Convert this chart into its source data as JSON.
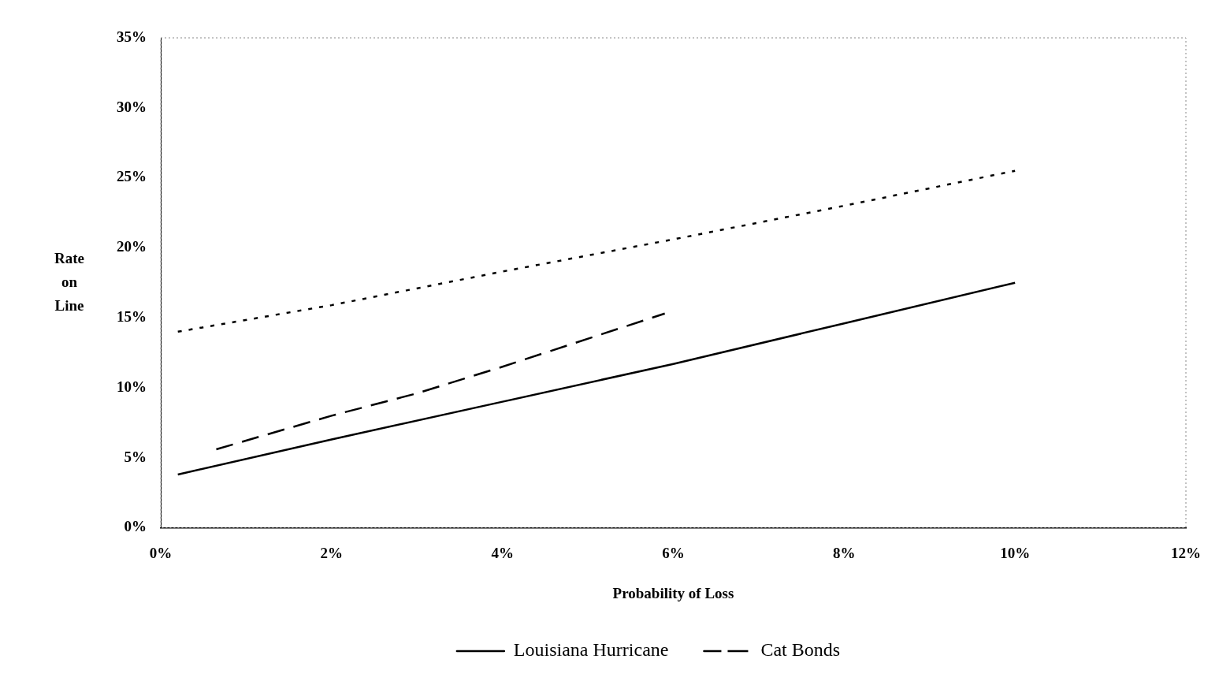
{
  "chart_data": {
    "type": "line",
    "xlabel": "Probability of Loss",
    "ylabel": "Rate on Line",
    "xlim": [
      0,
      12
    ],
    "xticks": [
      {
        "value": 0,
        "label": "0%"
      },
      {
        "value": 2,
        "label": "2%"
      },
      {
        "value": 4,
        "label": "4%"
      },
      {
        "value": 6,
        "label": "6%"
      },
      {
        "value": 8,
        "label": "8%"
      },
      {
        "value": 10,
        "label": "10%"
      },
      {
        "value": 12,
        "label": "12%"
      }
    ],
    "ylim": [
      0,
      35
    ],
    "yticks": [
      {
        "value": 0,
        "label": "0%"
      },
      {
        "value": 5,
        "label": "5%"
      },
      {
        "value": 10,
        "label": "10%"
      },
      {
        "value": 15,
        "label": "15%"
      },
      {
        "value": 20,
        "label": "20%"
      },
      {
        "value": 25,
        "label": "25%"
      },
      {
        "value": 30,
        "label": "30%"
      },
      {
        "value": 35,
        "label": "35%"
      }
    ],
    "grid": false,
    "legend": "bottom",
    "marker": "none",
    "series": [
      {
        "name": "Louisiana Hurricane",
        "color": "#000000",
        "line_style": "solid",
        "x": [
          0.2,
          2,
          4,
          6,
          8,
          10
        ],
        "values": [
          3.8,
          6.3,
          9.0,
          11.7,
          14.6,
          17.5
        ]
      },
      {
        "name": "Cat Bonds",
        "color": "#000000",
        "line_style": "dashed",
        "x": [
          0.65,
          2,
          3,
          4,
          5.9
        ],
        "values": [
          5.6,
          8.0,
          9.6,
          11.5,
          15.3
        ]
      },
      {
        "color": "#000000",
        "line_style": "dotted",
        "x": [
          0.2,
          2,
          4,
          6,
          8,
          10
        ],
        "values": [
          14.0,
          15.9,
          18.3,
          20.6,
          23.0,
          25.5
        ]
      }
    ]
  }
}
